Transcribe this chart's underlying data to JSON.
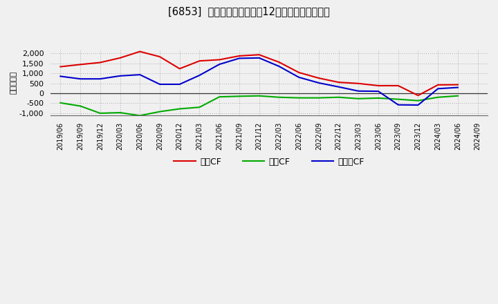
{
  "title": "[6853]  キャッシュフローの12か月移動合計の推移",
  "ylabel": "（百万円）",
  "x_labels": [
    "2019/06",
    "2019/09",
    "2019/12",
    "2020/03",
    "2020/06",
    "2020/09",
    "2020/12",
    "2021/03",
    "2021/06",
    "2021/09",
    "2021/12",
    "2022/03",
    "2022/06",
    "2022/09",
    "2022/12",
    "2023/03",
    "2023/06",
    "2023/09",
    "2023/12",
    "2024/03",
    "2024/06",
    "2024/09"
  ],
  "operating_cf": [
    1330,
    1440,
    1540,
    1770,
    2090,
    1830,
    1230,
    1620,
    1680,
    1870,
    1930,
    1560,
    1040,
    760,
    550,
    490,
    380,
    380,
    -110,
    420,
    430,
    null
  ],
  "investing_cf": [
    -480,
    -640,
    -1000,
    -970,
    -1120,
    -920,
    -780,
    -700,
    -180,
    -150,
    -130,
    -200,
    -230,
    -230,
    -200,
    -270,
    -240,
    -300,
    -370,
    -200,
    -130,
    null
  ],
  "free_cf": [
    850,
    720,
    720,
    870,
    930,
    450,
    450,
    900,
    1450,
    1750,
    1770,
    1350,
    800,
    520,
    320,
    110,
    100,
    -580,
    -590,
    230,
    290,
    null
  ],
  "ylim": [
    -1100,
    2200
  ],
  "yticks": [
    -1000,
    -500,
    0,
    500,
    1000,
    1500,
    2000
  ],
  "operating_color": "#dd0000",
  "investing_color": "#00aa00",
  "free_color": "#0000cc",
  "bg_color": "#f0f0f0",
  "grid_color": "#aaaaaa",
  "legend_labels": [
    "営業CF",
    "投資CF",
    "フリーCF"
  ]
}
